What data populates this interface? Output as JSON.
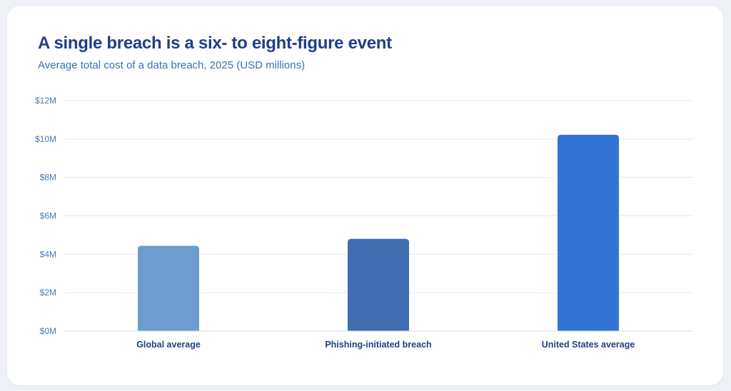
{
  "chart_data": {
    "type": "bar",
    "title": "A single breach is a six- to eight-figure event",
    "subtitle": "Average total cost of a data breach, 2025 (USD millions)",
    "xlabel": "",
    "ylabel": "",
    "categories": [
      "Global average",
      "Phishing-initiated breach",
      "United States average"
    ],
    "values": [
      4.44,
      4.8,
      10.22
    ],
    "colors": [
      "#6d9ccf",
      "#3f6db0",
      "#3374d6"
    ],
    "ylim": [
      0,
      12
    ],
    "yticks": [
      0,
      2,
      4,
      6,
      8,
      10,
      12
    ],
    "ytick_labels": [
      "$0M",
      "$2M",
      "$4M",
      "$6M",
      "$8M",
      "$10M",
      "$12M"
    ],
    "grid": true,
    "legend": "none"
  }
}
